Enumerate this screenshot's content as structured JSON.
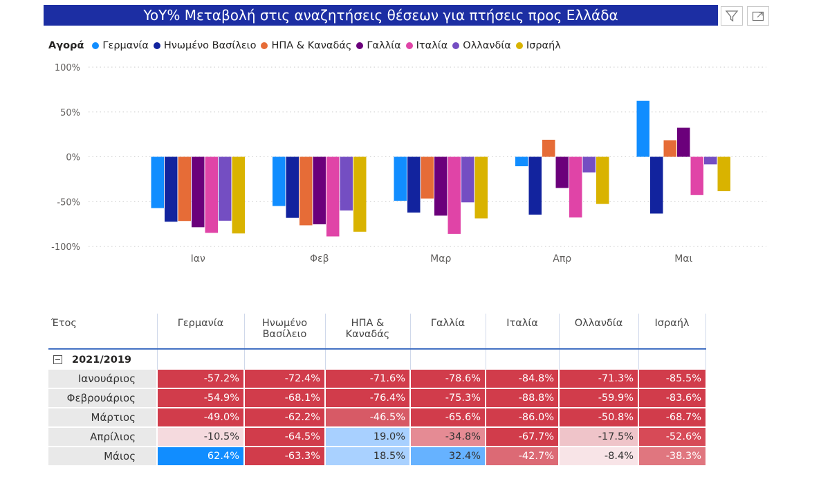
{
  "header": {
    "title": "YoY% Μεταβολή στις αναζητήσεις θέσεων για πτήσεις προς Ελλάδα",
    "filter_icon": "filter-icon",
    "focus_icon": "focus-mode-icon"
  },
  "legend": {
    "title": "Αγορά",
    "items": [
      {
        "label": "Γερμανία",
        "color": "#118dff"
      },
      {
        "label": "Ηνωμένο Βασίλειο",
        "color": "#12239e"
      },
      {
        "label": "ΗΠΑ & Καναδάς",
        "color": "#e66c37"
      },
      {
        "label": "Γαλλία",
        "color": "#6b007b"
      },
      {
        "label": "Ιταλία",
        "color": "#e044a7"
      },
      {
        "label": "Ολλανδία",
        "color": "#744ec2"
      },
      {
        "label": "Ισραήλ",
        "color": "#d9b300"
      }
    ]
  },
  "chart_data": {
    "type": "bar",
    "categories": [
      "Ιαν",
      "Φεβ",
      "Μαρ",
      "Απρ",
      "Μαι"
    ],
    "ylim": [
      -100,
      100
    ],
    "yticks": [
      "100%",
      "50%",
      "0%",
      "-50%",
      "-100%"
    ],
    "grid": true,
    "legend_position": "top-left",
    "series": [
      {
        "name": "Γερμανία",
        "values": [
          -57.2,
          -54.9,
          -49.0,
          -10.5,
          62.4
        ]
      },
      {
        "name": "Ηνωμένο Βασίλειο",
        "values": [
          -72.4,
          -68.1,
          -62.2,
          -64.5,
          -63.3
        ]
      },
      {
        "name": "ΗΠΑ & Καναδάς",
        "values": [
          -71.6,
          -76.4,
          -46.5,
          19.0,
          18.5
        ]
      },
      {
        "name": "Γαλλία",
        "values": [
          -78.6,
          -75.3,
          -65.6,
          -34.8,
          32.4
        ]
      },
      {
        "name": "Ιταλία",
        "values": [
          -84.8,
          -88.8,
          -86.0,
          -67.7,
          -42.7
        ]
      },
      {
        "name": "Ολλανδία",
        "values": [
          -71.3,
          -59.9,
          -50.8,
          -17.5,
          -8.4
        ]
      },
      {
        "name": "Ισραήλ",
        "values": [
          -85.5,
          -83.6,
          -68.7,
          -52.6,
          -38.3
        ]
      }
    ]
  },
  "table": {
    "corner": "Έτος",
    "columns": [
      "Γερμανία",
      "Ηνωμένο Βασίλειο",
      "ΗΠΑ & Καναδάς",
      "Γαλλία",
      "Ιταλία",
      "Ολλανδία",
      "Ισραήλ"
    ],
    "group": "2021/2019",
    "rows": [
      {
        "label": "Ιανουάριος",
        "cells": [
          "-57.2%",
          "-72.4%",
          "-71.6%",
          "-78.6%",
          "-84.8%",
          "-71.3%",
          "-85.5%"
        ],
        "colors": [
          "#d13c4b",
          "#d13c4b",
          "#d13c4b",
          "#d13c4b",
          "#d13c4b",
          "#d13c4b",
          "#d13c4b"
        ]
      },
      {
        "label": "Φεβρουάριος",
        "cells": [
          "-54.9%",
          "-68.1%",
          "-76.4%",
          "-75.3%",
          "-88.8%",
          "-59.9%",
          "-83.6%"
        ],
        "colors": [
          "#d13c4b",
          "#d13c4b",
          "#d13c4b",
          "#d13c4b",
          "#d13c4b",
          "#d13c4b",
          "#d13c4b"
        ]
      },
      {
        "label": "Μάρτιος",
        "cells": [
          "-49.0%",
          "-62.2%",
          "-46.5%",
          "-65.6%",
          "-86.0%",
          "-50.8%",
          "-68.7%"
        ],
        "colors": [
          "#d13c4b",
          "#d13c4b",
          "#d75a66",
          "#d13c4b",
          "#d13c4b",
          "#d13c4b",
          "#d13c4b"
        ]
      },
      {
        "label": "Απρίλιος",
        "cells": [
          "-10.5%",
          "-64.5%",
          "19.0%",
          "-34.8%",
          "-67.7%",
          "-17.5%",
          "-52.6%"
        ],
        "colors": [
          "#f5dade",
          "#d13c4b",
          "#a8d0ff",
          "#e58b94",
          "#d13c4b",
          "#efc4c9",
          "#d74a57"
        ]
      },
      {
        "label": "Μάιος",
        "cells": [
          "62.4%",
          "-63.3%",
          "18.5%",
          "32.4%",
          "-42.7%",
          "-8.4%",
          "-38.3%"
        ],
        "colors": [
          "#118dff",
          "#d13c4b",
          "#a9d1ff",
          "#66b2ff",
          "#dc6a75",
          "#f8e4e7",
          "#e0767f"
        ]
      }
    ]
  }
}
